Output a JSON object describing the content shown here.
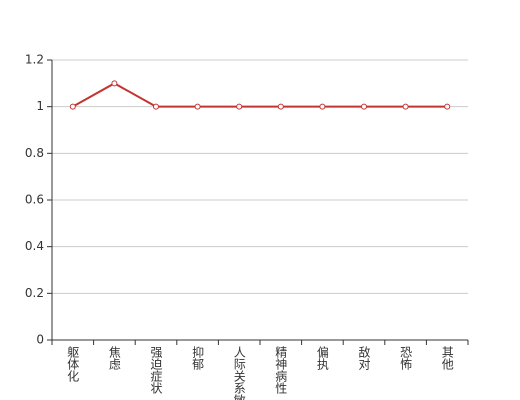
{
  "chart_data": {
    "type": "line",
    "categories": [
      "躯体化",
      "焦虑",
      "强迫症状",
      "抑郁",
      "人际关系敏感",
      "精神病性",
      "偏执",
      "敌对",
      "恐怖",
      "其他"
    ],
    "series": [
      {
        "color": "#c23531",
        "values": [
          1,
          1.1,
          1,
          1,
          1,
          1,
          1,
          1,
          1,
          1
        ]
      }
    ],
    "ylim": [
      0,
      1.2
    ],
    "yticks": [
      0,
      0.2,
      0.4,
      0.6,
      0.8,
      1,
      1.2
    ],
    "grid": true
  }
}
